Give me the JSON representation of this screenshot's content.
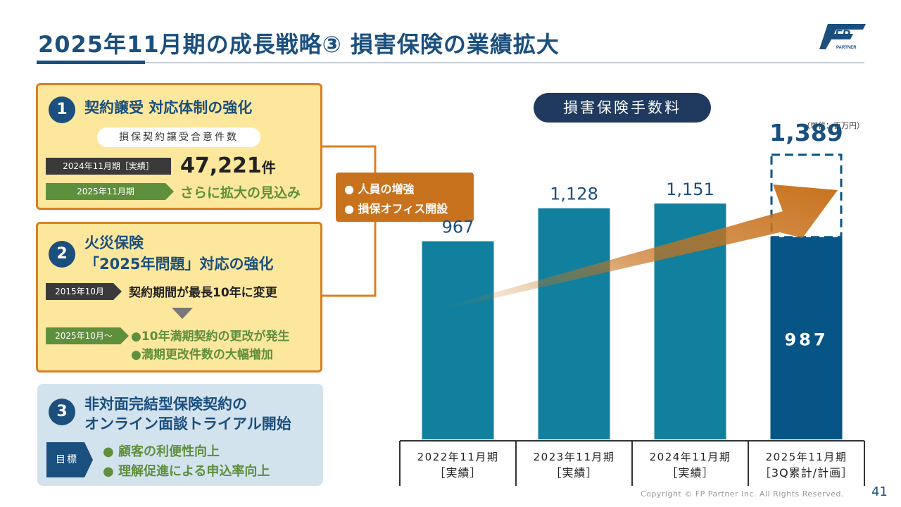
{
  "header": {
    "title": "2025年11月期の成長戦略③ 損害保険の業績拡大"
  },
  "logo": {
    "letters": "FP",
    "sub": "PARTNER"
  },
  "section1": {
    "num": "1",
    "title": "契約譲受 対応体制の強化",
    "pill": "損保契約譲受合意件数",
    "tag_actual": "2024年11月期［実績］",
    "value": "47,221",
    "value_unit": "件",
    "tag_plan": "2025年11月期",
    "outlook": "さらに拡大の見込み"
  },
  "section2": {
    "num": "2",
    "title_line1": "火災保険",
    "title_line2": "「2025年問題」対応の強化",
    "tag_2015": "2015年10月",
    "change": "契約期間が最長10年に変更",
    "tag_2025": "2025年10月～",
    "bullets": [
      "●10年満期契約の更改が発生",
      "●満期更改件数の大幅増加"
    ]
  },
  "section3": {
    "num": "3",
    "title_line1": "非対面完結型保険契約の",
    "title_line2": "オンライン面談トライアル開始",
    "tag": "目標",
    "bullets": [
      "● 顧客の利便性向上",
      "● 理解促進による申込率向上"
    ]
  },
  "callout": {
    "items": [
      "● 人員の増強",
      "● 損保オフィス開設"
    ]
  },
  "footer": {
    "copyright": "Copyright © FP Partner Inc. All Rights Reserved.",
    "page": "41"
  },
  "colors": {
    "primary": "#1a4f7e",
    "bar": "#11809e",
    "bar_last": "#075486",
    "orange": "#c8721d",
    "green": "#5e8f3c"
  },
  "chart_data": {
    "type": "bar",
    "title": "損害保険手数料",
    "unit": "（単位：百万円）",
    "categories": [
      [
        "2022年11月期",
        "［実績］"
      ],
      [
        "2023年11月期",
        "［実績］"
      ],
      [
        "2024年11月期",
        "［実績］"
      ],
      [
        "2025年11月期",
        "［3Q累計/計画］"
      ]
    ],
    "values": [
      967,
      1128,
      1151,
      987
    ],
    "labels": [
      "967",
      "1,128",
      "1,151",
      "987"
    ],
    "plan_value": 1389,
    "plan_label": "1,389",
    "ylim": [
      0,
      1450
    ]
  }
}
